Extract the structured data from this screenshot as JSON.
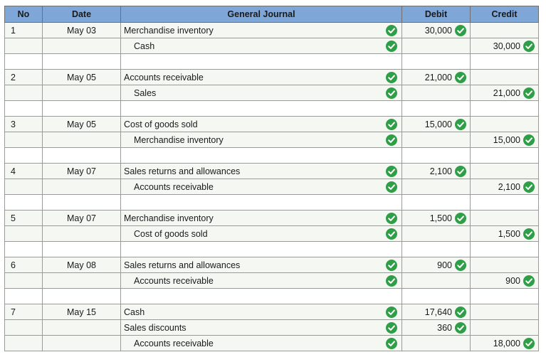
{
  "headers": {
    "no": "No",
    "date": "Date",
    "journal": "General Journal",
    "debit": "Debit",
    "credit": "Credit"
  },
  "colors": {
    "header_bg": "#7ea7d8",
    "check_green": "#2e9e47",
    "row_bg": "#f5f7f3"
  },
  "icons": {
    "check": "check-circle-icon"
  },
  "entries": [
    {
      "no": "1",
      "date": "May 03",
      "lines": [
        {
          "account": "Merchandise inventory",
          "side": "debit",
          "amount": "30,000"
        },
        {
          "account": "Cash",
          "side": "credit",
          "amount": "30,000"
        }
      ]
    },
    {
      "no": "2",
      "date": "May 05",
      "lines": [
        {
          "account": "Accounts receivable",
          "side": "debit",
          "amount": "21,000"
        },
        {
          "account": "Sales",
          "side": "credit",
          "amount": "21,000"
        }
      ]
    },
    {
      "no": "3",
      "date": "May 05",
      "lines": [
        {
          "account": "Cost of goods sold",
          "side": "debit",
          "amount": "15,000"
        },
        {
          "account": "Merchandise inventory",
          "side": "credit",
          "amount": "15,000"
        }
      ]
    },
    {
      "no": "4",
      "date": "May 07",
      "lines": [
        {
          "account": "Sales returns and allowances",
          "side": "debit",
          "amount": "2,100"
        },
        {
          "account": "Accounts receivable",
          "side": "credit",
          "amount": "2,100"
        }
      ]
    },
    {
      "no": "5",
      "date": "May 07",
      "lines": [
        {
          "account": "Merchandise inventory",
          "side": "debit",
          "amount": "1,500"
        },
        {
          "account": "Cost of goods sold",
          "side": "credit",
          "amount": "1,500"
        }
      ]
    },
    {
      "no": "6",
      "date": "May 08",
      "lines": [
        {
          "account": "Sales returns and allowances",
          "side": "debit",
          "amount": "900"
        },
        {
          "account": "Accounts receivable",
          "side": "credit",
          "amount": "900"
        }
      ]
    },
    {
      "no": "7",
      "date": "May 15",
      "lines": [
        {
          "account": "Cash",
          "side": "debit",
          "amount": "17,640"
        },
        {
          "account": "Sales discounts",
          "side": "debit",
          "amount": "360"
        },
        {
          "account": "Accounts receivable",
          "side": "credit",
          "amount": "18,000"
        }
      ]
    }
  ]
}
